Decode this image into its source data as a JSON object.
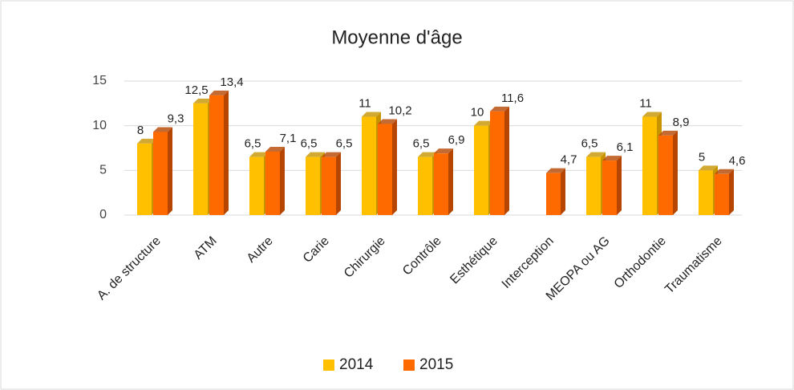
{
  "chart_data": {
    "type": "bar",
    "title": "Moyenne d'âge",
    "categories": [
      "A. de structure",
      "ATM",
      "Autre",
      "Carie",
      "Chirurgie",
      "Contrôle",
      "Esthétique",
      "Interception",
      "MEOPA ou AG",
      "Orthodontie",
      "Traumatisme"
    ],
    "series": [
      {
        "name": "2014",
        "color": "#ffc000",
        "side": "#c79400",
        "values": [
          8,
          12.5,
          6.5,
          6.5,
          11,
          6.5,
          10,
          null,
          6.5,
          11,
          5
        ],
        "value_labels": [
          "8",
          "12,5",
          "6,5",
          "6,5",
          "11",
          "6,5",
          "10",
          null,
          "6,5",
          "11",
          "5"
        ]
      },
      {
        "name": "2015",
        "color": "#ff6a00",
        "side": "#b54500",
        "values": [
          9.3,
          13.4,
          7.1,
          6.5,
          10.2,
          6.9,
          11.6,
          4.7,
          6.1,
          8.9,
          4.6
        ],
        "value_labels": [
          "9,3",
          "13,4",
          "7,1",
          "6,5",
          "10,2",
          "6,9",
          "11,6",
          "4,7",
          "6,1",
          "8,9",
          "4,6"
        ]
      }
    ],
    "ylim": [
      0,
      15
    ],
    "yticks": [
      0,
      5,
      10,
      15
    ],
    "grid": true,
    "legend": "bottom"
  }
}
